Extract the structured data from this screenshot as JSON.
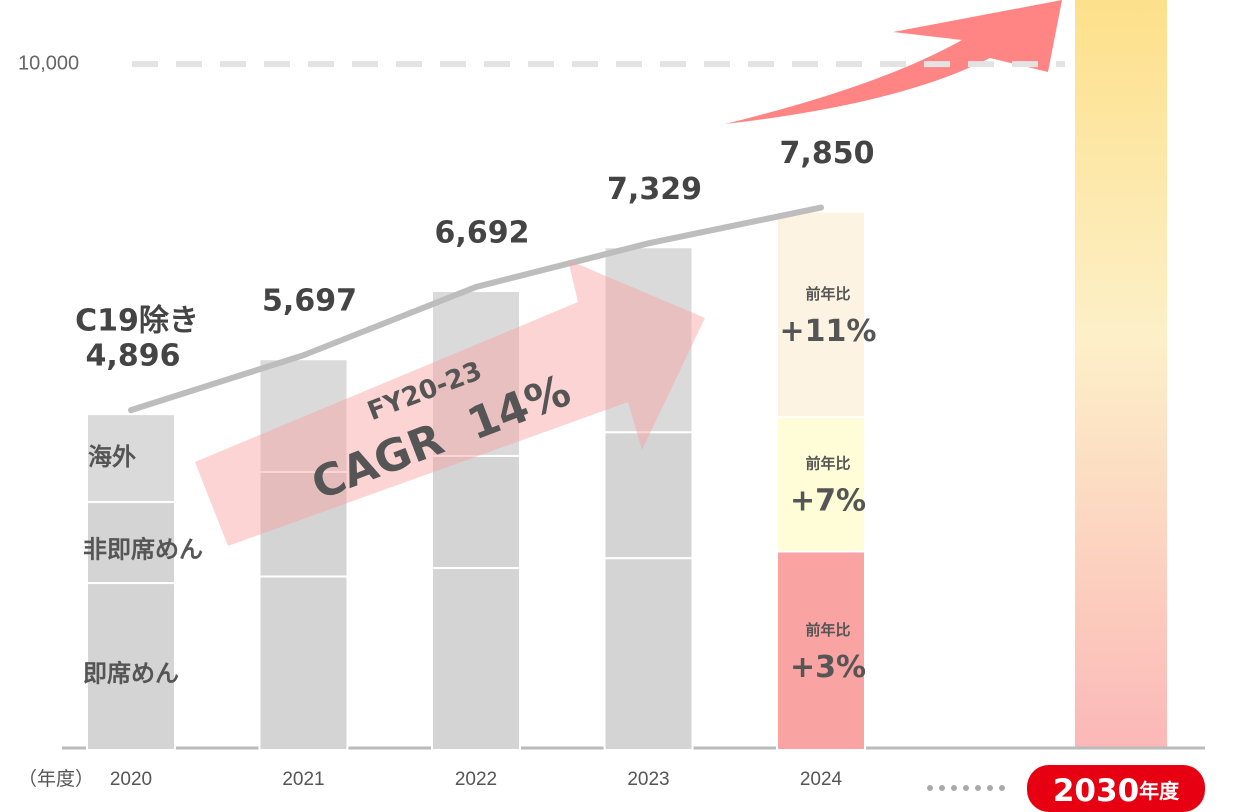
{
  "chart_data": {
    "type": "stacked_bar",
    "categories": [
      "2020",
      "2021",
      "2022",
      "2023",
      "2024"
    ],
    "x_label": "（年度）",
    "future_category": "2030",
    "future_suffix": "年度",
    "series": [
      {
        "name": "即席めん",
        "color": "#d4d4d4",
        "values": [
          2434,
          2530,
          2653,
          2797,
          2895
        ]
      },
      {
        "name": "非即席めん",
        "color": "#d4d4d4",
        "values": [
          1181,
          1525,
          1634,
          1836,
          1960
        ]
      },
      {
        "name": "海外",
        "color": "#dadada",
        "values": [
          1281,
          1642,
          2405,
          2696,
          2995
        ]
      }
    ],
    "highlight_colors": [
      "#f9a3a3",
      "#fffdd8",
      "#fdf3e2"
    ],
    "totals": [
      4896,
      5697,
      6692,
      7329,
      7850
    ],
    "total_labels": [
      "4,896",
      "5,697",
      "6,692",
      "7,329",
      "7,850"
    ],
    "first_total_note": "C19除き",
    "yoy": [
      {
        "caption": "前年比",
        "label": "+3%"
      },
      {
        "caption": "前年比",
        "label": "+7%"
      },
      {
        "caption": "前年比",
        "label": "+11%"
      }
    ],
    "annotation_top": "FY20-23",
    "annotation_main": "CAGR  14%",
    "ylim": [
      0,
      10730
    ],
    "yticks": [
      {
        "value": 10000,
        "label": "10,000"
      }
    ]
  }
}
